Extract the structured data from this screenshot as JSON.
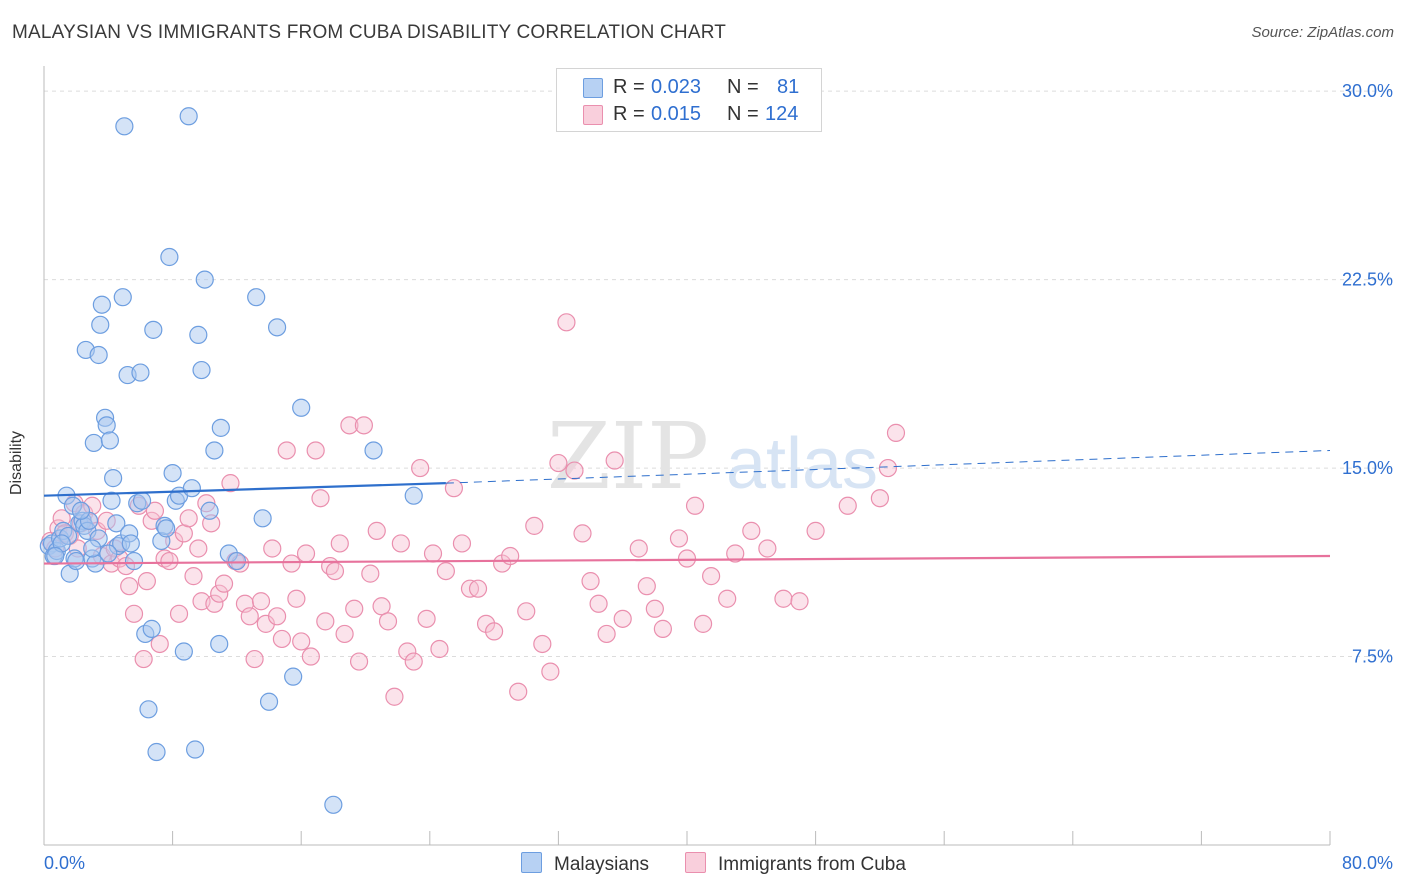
{
  "title": "MALAYSIAN VS IMMIGRANTS FROM CUBA DISABILITY CORRELATION CHART",
  "source": "Source: ZipAtlas.com",
  "legend": {
    "rows": [
      {
        "r_label": "R =",
        "r_value": "0.023",
        "n_label": "N =",
        "n_value": "81"
      },
      {
        "r_label": "R =",
        "r_value": "0.015",
        "n_label": "N =",
        "n_value": "124"
      }
    ]
  },
  "bottom_legend": {
    "series1": "Malaysians",
    "series2": "Immigrants from Cuba"
  },
  "colors": {
    "blue_fill": "#a9c8ef",
    "blue_stroke": "#6d9ee0",
    "blue_line": "#2e6fcc",
    "pink_fill": "#f7c0d2",
    "pink_stroke": "#ea8fae",
    "pink_line": "#e7729c",
    "tick_text": "#2f6fd0",
    "grid": "#dcdcdc"
  },
  "chart_data": {
    "type": "scatter",
    "title": "MALAYSIAN VS IMMIGRANTS FROM CUBA DISABILITY CORRELATION CHART",
    "xlabel": "",
    "ylabel": "Disability",
    "xlim": [
      0,
      80
    ],
    "ylim": [
      0,
      31
    ],
    "x_tick_labels": [
      "0.0%",
      "80.0%"
    ],
    "y_ticks": [
      7.5,
      15.0,
      22.5,
      30.0
    ],
    "y_tick_labels": [
      "7.5%",
      "15.0%",
      "22.5%",
      "30.0%"
    ],
    "grid": true,
    "watermark": {
      "zip": "ZIP",
      "atlas": "atlas"
    },
    "series": [
      {
        "name": "Malaysians",
        "color": "#6d9ee0",
        "trend": {
          "x0": 0.0,
          "y0": 13.9,
          "x1": 25.0,
          "y1": 14.4,
          "dashed_to_x": 80.0,
          "dashed_to_y": 15.7
        },
        "points": [
          [
            0.3,
            11.9
          ],
          [
            0.5,
            12.0
          ],
          [
            0.6,
            11.5
          ],
          [
            0.8,
            11.7
          ],
          [
            1.0,
            12.2
          ],
          [
            1.2,
            12.5
          ],
          [
            1.4,
            13.9
          ],
          [
            1.5,
            12.3
          ],
          [
            1.6,
            10.8
          ],
          [
            1.8,
            13.5
          ],
          [
            1.9,
            11.4
          ],
          [
            2.0,
            11.3
          ],
          [
            2.2,
            12.8
          ],
          [
            2.4,
            12.9
          ],
          [
            2.5,
            12.7
          ],
          [
            2.7,
            12.5
          ],
          [
            2.8,
            12.9
          ],
          [
            3.0,
            11.4
          ],
          [
            3.2,
            11.2
          ],
          [
            3.4,
            12.2
          ],
          [
            2.6,
            19.7
          ],
          [
            3.1,
            16.0
          ],
          [
            3.4,
            19.5
          ],
          [
            3.5,
            20.7
          ],
          [
            3.6,
            21.5
          ],
          [
            3.8,
            17.0
          ],
          [
            3.9,
            16.7
          ],
          [
            4.1,
            16.1
          ],
          [
            4.3,
            14.6
          ],
          [
            4.2,
            13.7
          ],
          [
            4.5,
            12.8
          ],
          [
            4.6,
            11.9
          ],
          [
            4.8,
            12.0
          ],
          [
            4.9,
            21.8
          ],
          [
            5.0,
            28.6
          ],
          [
            5.2,
            18.7
          ],
          [
            5.3,
            12.4
          ],
          [
            5.4,
            12.0
          ],
          [
            5.6,
            11.3
          ],
          [
            5.8,
            13.6
          ],
          [
            6.0,
            18.8
          ],
          [
            6.1,
            13.7
          ],
          [
            6.3,
            8.4
          ],
          [
            6.5,
            5.4
          ],
          [
            6.7,
            8.6
          ],
          [
            6.8,
            20.5
          ],
          [
            7.0,
            3.7
          ],
          [
            7.3,
            12.1
          ],
          [
            7.5,
            12.7
          ],
          [
            7.6,
            12.6
          ],
          [
            7.8,
            23.4
          ],
          [
            8.0,
            14.8
          ],
          [
            8.2,
            13.7
          ],
          [
            8.4,
            13.9
          ],
          [
            8.7,
            7.7
          ],
          [
            9.0,
            29.0
          ],
          [
            9.2,
            14.2
          ],
          [
            9.4,
            3.8
          ],
          [
            9.6,
            20.3
          ],
          [
            9.8,
            18.9
          ],
          [
            10.0,
            22.5
          ],
          [
            10.3,
            13.3
          ],
          [
            10.6,
            15.7
          ],
          [
            10.9,
            8.0
          ],
          [
            11.0,
            16.6
          ],
          [
            11.5,
            11.6
          ],
          [
            12.0,
            11.3
          ],
          [
            13.2,
            21.8
          ],
          [
            13.6,
            13.0
          ],
          [
            14.0,
            5.7
          ],
          [
            14.5,
            20.6
          ],
          [
            15.5,
            6.7
          ],
          [
            16.0,
            17.4
          ],
          [
            18.0,
            1.6
          ],
          [
            20.5,
            15.7
          ],
          [
            23.0,
            13.9
          ],
          [
            4.0,
            11.6
          ],
          [
            3.0,
            11.8
          ],
          [
            2.3,
            13.3
          ],
          [
            1.1,
            12.0
          ],
          [
            0.7,
            11.5
          ]
        ]
      },
      {
        "name": "Immigrants from Cuba",
        "color": "#ea8fae",
        "trend": {
          "x0": 0.0,
          "y0": 11.2,
          "x1": 80.0,
          "y1": 11.5
        },
        "points": [
          [
            0.4,
            12.1
          ],
          [
            0.7,
            11.8
          ],
          [
            0.9,
            12.6
          ],
          [
            1.1,
            13.0
          ],
          [
            1.3,
            12.4
          ],
          [
            1.6,
            12.3
          ],
          [
            1.9,
            13.6
          ],
          [
            2.1,
            11.8
          ],
          [
            2.3,
            12.8
          ],
          [
            2.5,
            13.2
          ],
          [
            2.8,
            12.9
          ],
          [
            3.0,
            13.5
          ],
          [
            3.3,
            12.5
          ],
          [
            3.6,
            11.5
          ],
          [
            3.9,
            12.9
          ],
          [
            4.2,
            11.2
          ],
          [
            4.4,
            11.8
          ],
          [
            4.7,
            11.4
          ],
          [
            5.1,
            11.1
          ],
          [
            5.3,
            10.3
          ],
          [
            5.6,
            9.2
          ],
          [
            5.9,
            13.5
          ],
          [
            6.2,
            7.4
          ],
          [
            6.4,
            10.5
          ],
          [
            6.7,
            12.9
          ],
          [
            6.9,
            13.3
          ],
          [
            7.2,
            8.0
          ],
          [
            7.5,
            11.4
          ],
          [
            7.8,
            11.3
          ],
          [
            8.1,
            12.1
          ],
          [
            8.4,
            9.2
          ],
          [
            8.7,
            12.4
          ],
          [
            9.0,
            13.0
          ],
          [
            9.3,
            10.7
          ],
          [
            9.6,
            11.8
          ],
          [
            9.8,
            9.7
          ],
          [
            10.1,
            13.6
          ],
          [
            10.4,
            12.8
          ],
          [
            10.6,
            9.6
          ],
          [
            10.9,
            10.0
          ],
          [
            11.2,
            10.4
          ],
          [
            11.6,
            14.4
          ],
          [
            11.9,
            11.3
          ],
          [
            12.2,
            11.2
          ],
          [
            12.5,
            9.6
          ],
          [
            12.8,
            9.1
          ],
          [
            13.1,
            7.4
          ],
          [
            13.5,
            9.7
          ],
          [
            13.8,
            8.8
          ],
          [
            14.2,
            11.8
          ],
          [
            14.5,
            9.1
          ],
          [
            14.8,
            8.2
          ],
          [
            15.1,
            15.7
          ],
          [
            15.4,
            11.2
          ],
          [
            15.7,
            9.8
          ],
          [
            16.0,
            8.1
          ],
          [
            16.3,
            11.6
          ],
          [
            16.6,
            7.5
          ],
          [
            16.9,
            15.7
          ],
          [
            17.2,
            13.8
          ],
          [
            17.5,
            8.9
          ],
          [
            17.8,
            11.1
          ],
          [
            18.1,
            10.9
          ],
          [
            18.4,
            12.0
          ],
          [
            18.7,
            8.4
          ],
          [
            19.0,
            16.7
          ],
          [
            19.3,
            9.4
          ],
          [
            19.6,
            7.3
          ],
          [
            19.9,
            16.7
          ],
          [
            20.3,
            10.8
          ],
          [
            20.7,
            12.5
          ],
          [
            21.0,
            9.5
          ],
          [
            21.4,
            8.9
          ],
          [
            21.8,
            5.9
          ],
          [
            22.2,
            12.0
          ],
          [
            22.6,
            7.7
          ],
          [
            23.0,
            7.3
          ],
          [
            23.4,
            15.0
          ],
          [
            23.8,
            9.0
          ],
          [
            24.2,
            11.6
          ],
          [
            24.6,
            7.8
          ],
          [
            25.0,
            10.9
          ],
          [
            25.5,
            14.2
          ],
          [
            26.0,
            12.0
          ],
          [
            26.5,
            10.2
          ],
          [
            27.0,
            10.2
          ],
          [
            27.5,
            8.8
          ],
          [
            28.0,
            8.5
          ],
          [
            28.5,
            11.2
          ],
          [
            29.0,
            11.5
          ],
          [
            29.5,
            6.1
          ],
          [
            30.0,
            9.3
          ],
          [
            30.5,
            12.7
          ],
          [
            31.0,
            8.0
          ],
          [
            31.5,
            6.9
          ],
          [
            32.0,
            15.2
          ],
          [
            32.5,
            20.8
          ],
          [
            33.0,
            14.9
          ],
          [
            33.5,
            12.4
          ],
          [
            34.0,
            10.5
          ],
          [
            34.5,
            9.6
          ],
          [
            35.0,
            8.4
          ],
          [
            35.5,
            15.3
          ],
          [
            36.0,
            9.0
          ],
          [
            37.0,
            11.8
          ],
          [
            37.5,
            10.3
          ],
          [
            38.0,
            9.4
          ],
          [
            38.5,
            8.6
          ],
          [
            39.5,
            12.2
          ],
          [
            40.0,
            11.4
          ],
          [
            40.5,
            13.5
          ],
          [
            41.0,
            8.8
          ],
          [
            41.5,
            10.7
          ],
          [
            42.5,
            9.8
          ],
          [
            43.0,
            11.6
          ],
          [
            44.0,
            12.5
          ],
          [
            45.0,
            11.8
          ],
          [
            46.0,
            9.8
          ],
          [
            47.0,
            9.7
          ],
          [
            48.0,
            12.5
          ],
          [
            50.0,
            13.5
          ],
          [
            52.0,
            13.8
          ],
          [
            52.5,
            15.0
          ],
          [
            53.0,
            16.4
          ]
        ]
      }
    ]
  }
}
